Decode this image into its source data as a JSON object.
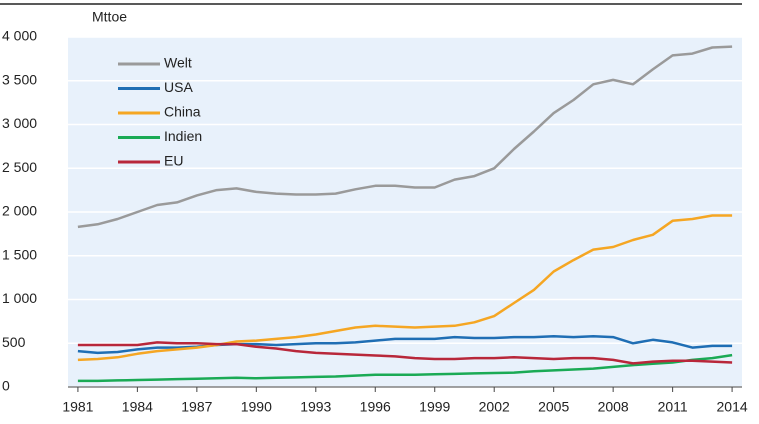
{
  "chart_data": {
    "type": "line",
    "y_label": "Mttoe",
    "x": [
      1981,
      1982,
      1983,
      1984,
      1985,
      1986,
      1987,
      1988,
      1989,
      1990,
      1991,
      1992,
      1993,
      1994,
      1995,
      1996,
      1997,
      1998,
      1999,
      2000,
      2001,
      2002,
      2003,
      2004,
      2005,
      2006,
      2007,
      2008,
      2009,
      2010,
      2011,
      2012,
      2013,
      2014
    ],
    "xlim": [
      1980.5,
      2014.5
    ],
    "xticks": [
      1981,
      1984,
      1987,
      1990,
      1993,
      1996,
      1999,
      2002,
      2005,
      2008,
      2011,
      2014
    ],
    "ylim": [
      0,
      4000
    ],
    "yticks": [
      0,
      500,
      {
        "value": 1000,
        "label": "1 000"
      },
      {
        "value": 1500,
        "label": "1 500"
      },
      {
        "value": 2000,
        "label": "2 000"
      },
      {
        "value": 2500,
        "label": "2 500"
      },
      {
        "value": 3000,
        "label": "3 000"
      },
      {
        "value": 3500,
        "label": "3 500"
      },
      {
        "value": 4000,
        "label": "4 000"
      }
    ],
    "grid": true,
    "legend": "upper left",
    "series": [
      {
        "name": "Welt",
        "color": "#9a9a9a",
        "values": [
          1830,
          1860,
          1920,
          2000,
          2080,
          2110,
          2190,
          2250,
          2270,
          2230,
          2210,
          2200,
          2200,
          2210,
          2260,
          2300,
          2300,
          2280,
          2280,
          2370,
          2410,
          2500,
          2720,
          2920,
          3130,
          3280,
          3460,
          3510,
          3460,
          3630,
          3790,
          3810,
          3880,
          3890
        ]
      },
      {
        "name": "USA",
        "color": "#1f6eb4",
        "values": [
          410,
          390,
          400,
          430,
          450,
          450,
          460,
          480,
          490,
          490,
          480,
          490,
          500,
          500,
          510,
          530,
          550,
          550,
          550,
          570,
          560,
          560,
          570,
          570,
          580,
          570,
          580,
          570,
          500,
          540,
          510,
          450,
          470,
          470
        ]
      },
      {
        "name": "China",
        "color": "#f5a623",
        "values": [
          310,
          320,
          340,
          380,
          410,
          430,
          450,
          480,
          520,
          530,
          550,
          570,
          600,
          640,
          680,
          700,
          690,
          680,
          690,
          700,
          740,
          810,
          960,
          1110,
          1320,
          1450,
          1570,
          1600,
          1680,
          1740,
          1900,
          1920,
          1960,
          1960
        ]
      },
      {
        "name": "Indien",
        "color": "#1aaa55",
        "values": [
          70,
          70,
          75,
          80,
          85,
          90,
          95,
          100,
          105,
          100,
          105,
          110,
          115,
          120,
          130,
          140,
          140,
          140,
          145,
          150,
          155,
          160,
          165,
          180,
          190,
          200,
          210,
          230,
          250,
          265,
          280,
          310,
          330,
          365
        ]
      },
      {
        "name": "EU",
        "color": "#b8273a",
        "values": [
          480,
          480,
          480,
          480,
          510,
          500,
          500,
          490,
          490,
          460,
          440,
          410,
          390,
          380,
          370,
          360,
          350,
          330,
          320,
          320,
          330,
          330,
          340,
          330,
          320,
          330,
          330,
          310,
          270,
          290,
          300,
          300,
          290,
          280
        ]
      }
    ]
  }
}
